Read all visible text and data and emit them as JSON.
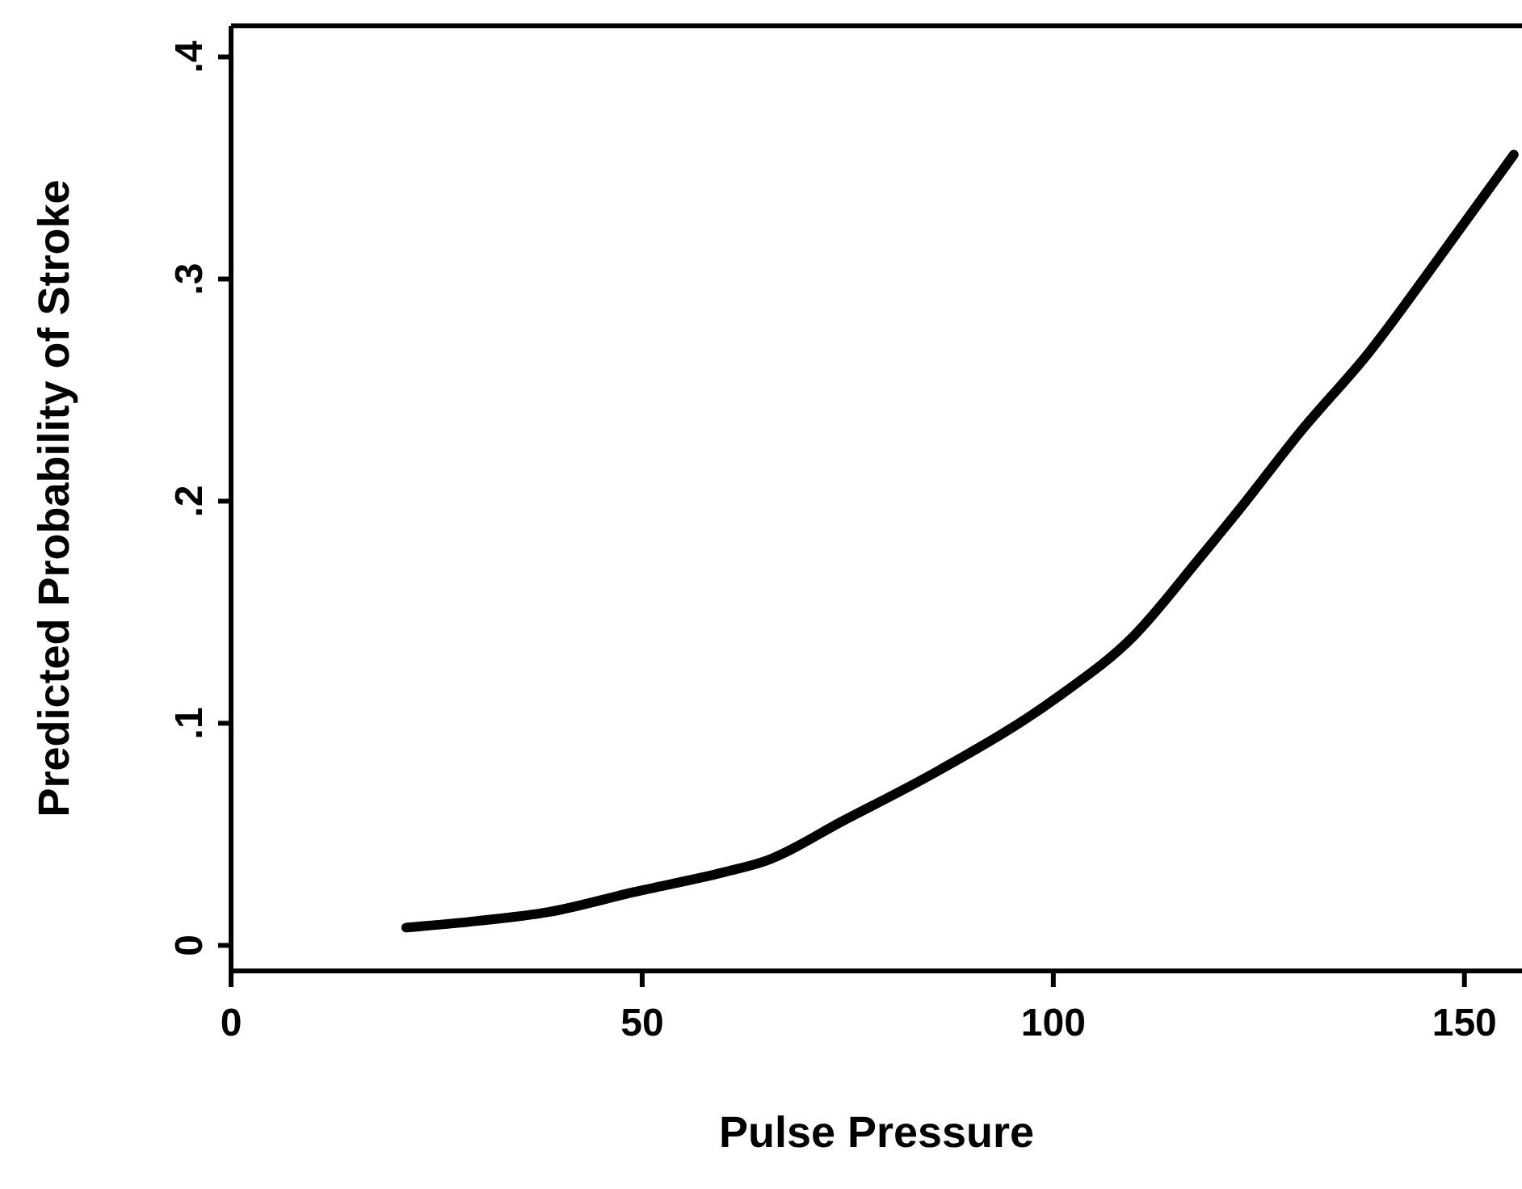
{
  "chart_data": {
    "type": "line",
    "xlabel": "Pulse Pressure",
    "ylabel": "Predicted Probability of Stroke",
    "xlim": [
      0,
      157
    ],
    "xticks": [
      0,
      50,
      100,
      150
    ],
    "ylim": [
      -0.0115,
      0.414
    ],
    "yticks": [
      0,
      {
        "value": 0.1,
        "label": ".1"
      },
      {
        "value": 0.2,
        "label": ".2"
      },
      {
        "value": 0.3,
        "label": ".3"
      },
      {
        "value": 0.4,
        "label": ".4"
      }
    ],
    "grid": false,
    "legend": false,
    "marker": "none",
    "line_style": "solid",
    "series": [
      {
        "color": "#000000",
        "x": [
          21.3,
          30,
          38.6,
          49,
          60,
          65,
          74.4,
          86.2,
          100.6,
          109.7,
          117.5,
          123,
          130,
          138.4,
          147,
          156
        ],
        "values": [
          0.008,
          0.011,
          0.015,
          0.024,
          0.033,
          0.038,
          0.056,
          0.079,
          0.112,
          0.139,
          0.173,
          0.198,
          0.231,
          0.267,
          0.31,
          0.356
        ]
      }
    ]
  }
}
